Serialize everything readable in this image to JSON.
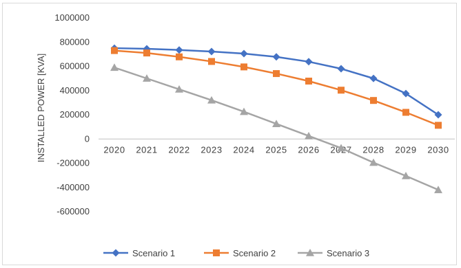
{
  "chart_data": {
    "type": "line",
    "title": "",
    "xlabel": "",
    "ylabel": "INSTALLED POWER [KVA]",
    "categories": [
      "2020",
      "2021",
      "2022",
      "2023",
      "2024",
      "2025",
      "2026",
      "2027",
      "2028",
      "2029",
      "2030"
    ],
    "ylim": [
      -600000,
      1000000
    ],
    "yticks": [
      1000000,
      800000,
      600000,
      400000,
      200000,
      0,
      -200000,
      -400000,
      -600000
    ],
    "grid": false,
    "legend_position": "bottom",
    "series": [
      {
        "name": "Scenario 1",
        "color": "#4472c4",
        "marker": "diamond",
        "values": [
          750000,
          745000,
          735000,
          722000,
          705000,
          678000,
          638000,
          580000,
          500000,
          375000,
          200000
        ]
      },
      {
        "name": "Scenario 2",
        "color": "#ed7d31",
        "marker": "square",
        "values": [
          730000,
          710000,
          678000,
          640000,
          595000,
          540000,
          478000,
          403000,
          318000,
          220000,
          113000
        ]
      },
      {
        "name": "Scenario 3",
        "color": "#a5a5a5",
        "marker": "triangle",
        "values": [
          590000,
          500000,
          410000,
          320000,
          225000,
          125000,
          25000,
          -75000,
          -195000,
          -305000,
          -420000
        ]
      }
    ]
  }
}
